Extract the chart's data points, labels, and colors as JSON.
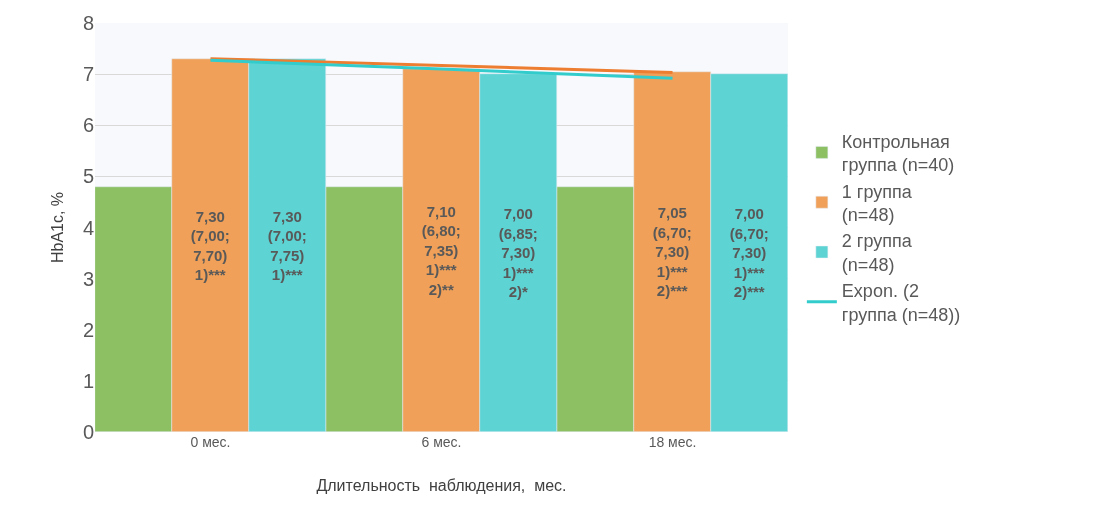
{
  "chart_data": {
    "type": "bar",
    "xlabel": "Длительность  наблюдения,  мес.",
    "ylabel": "HbA1c, %",
    "categories": [
      "0 мес.",
      "6 мес.",
      "18 мес."
    ],
    "series": [
      {
        "name": "Контрольная группа (n=40)",
        "color": "#8cc063",
        "values": [
          4.8,
          4.8,
          4.8
        ],
        "value_labels": [
          null,
          null,
          null
        ]
      },
      {
        "name": "1 группа (n=48)",
        "color": "#f0a058",
        "values": [
          7.3,
          7.1,
          7.05
        ],
        "value_labels": [
          "7,30\n(7,00;\n7,70)\n1)***",
          "7,10\n(6,80;\n7,35)\n1)***\n2)**",
          "7,05\n(6,70;\n7,30)\n1)***\n2)***"
        ]
      },
      {
        "name": "2 группа (n=48)",
        "color": "#5ed3d3",
        "values": [
          7.3,
          7.0,
          7.0
        ],
        "value_labels": [
          "7,30\n(7,00;\n7,75)\n1)***",
          "7,00\n(6,85;\n7,30)\n1)***\n2)*",
          "7,00\n(6,70;\n7,30)\n1)***\n2)***"
        ]
      },
      {
        "type": "line",
        "color": "#ed7d31",
        "values": [
          7.3,
          7.17,
          7.03
        ]
      },
      {
        "type": "line",
        "name": "Expon. (2 группа (n=48))",
        "color": "#33cccc",
        "values": [
          7.27,
          7.1,
          6.92
        ]
      }
    ],
    "ylim": [
      0,
      8
    ],
    "yticks": [
      0,
      1,
      2,
      3,
      4,
      5,
      6,
      7,
      8
    ],
    "grid": "y",
    "legend": "right"
  }
}
